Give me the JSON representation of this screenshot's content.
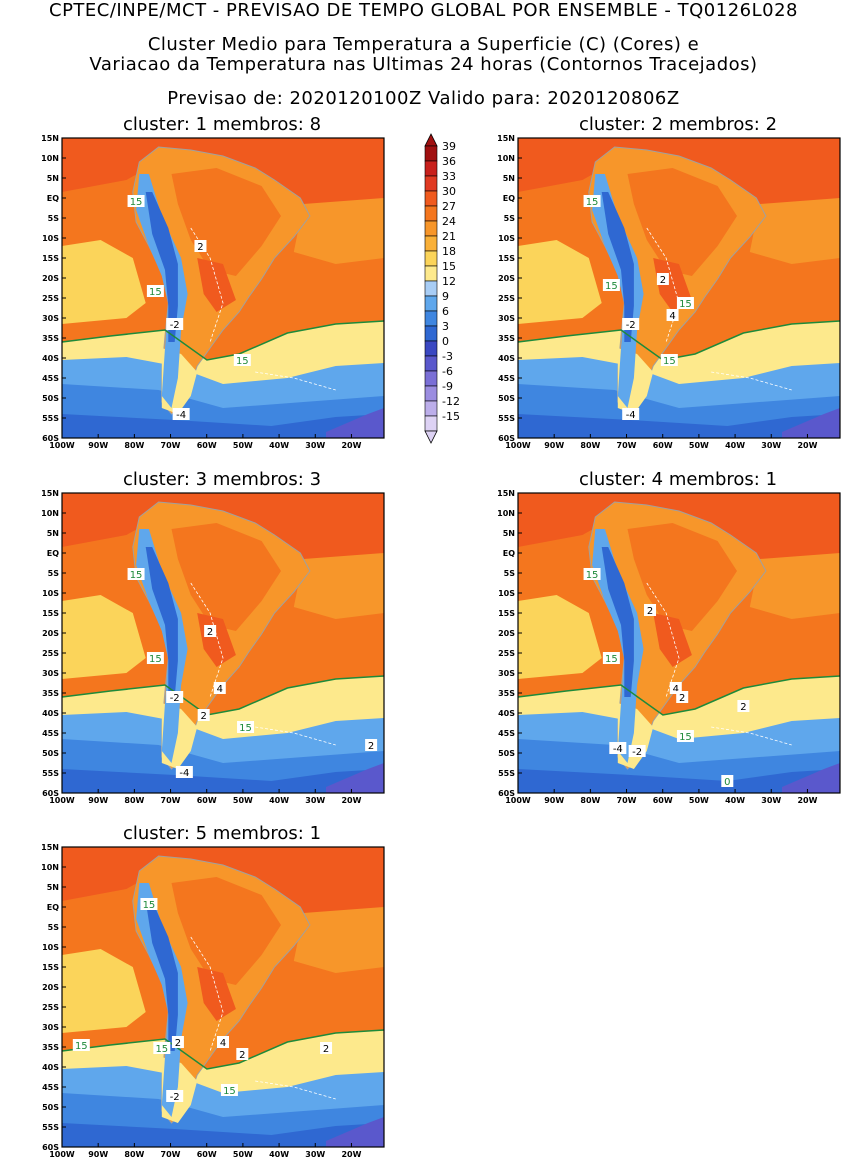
{
  "header": {
    "line1": "CPTEC/INPE/MCT - PREVISAO DE TEMPO GLOBAL POR ENSEMBLE - TQ0126L028",
    "line2": "Cluster Medio para Temperatura a Superficie (C) (Cores) e",
    "line3": "Variacao da Temperatura nas Ultimas 24 horas (Contornos Tracejados)",
    "line4": "Previsao de: 2020120100Z    Valido para: 2020120806Z"
  },
  "colors": {
    "c39": "#a01010",
    "c36": "#c8201c",
    "c33": "#e03a22",
    "c30": "#f05a1e",
    "c27": "#f4761e",
    "c24": "#f7962a",
    "c21": "#f9b038",
    "c18": "#fbd45a",
    "c15": "#fde98c",
    "c12": "#a8cdf5",
    "c9": "#5fa7ec",
    "c6": "#3f86e0",
    "c3": "#2f68d2",
    "c0": "#3a48c2",
    "cm3": "#5a58cc",
    "cm6": "#7a6fd6",
    "cm9": "#9b8de0",
    "cm12": "#bcaeea",
    "cm15": "#ddd2f4",
    "land_line": "#a0a0a0",
    "contour_15": "#1e8a3a",
    "change_line": "#ffffff"
  },
  "colorbar": {
    "ticks": [
      "39",
      "36",
      "33",
      "30",
      "27",
      "24",
      "21",
      "18",
      "15",
      "12",
      "9",
      "6",
      "3",
      "0",
      "-3",
      "-6",
      "-9",
      "-12",
      "-15"
    ]
  },
  "axes": {
    "lat_labels": [
      "15N",
      "10N",
      "5N",
      "EQ",
      "5S",
      "10S",
      "15S",
      "20S",
      "25S",
      "30S",
      "35S",
      "40S",
      "45S",
      "50S",
      "55S",
      "60S"
    ],
    "lon_labels": [
      "100W",
      "90W",
      "80W",
      "70W",
      "60W",
      "50W",
      "40W",
      "30W",
      "20W"
    ]
  },
  "panels": [
    {
      "title": "cluster: 1   membros: 8",
      "labels": [
        {
          "t": "15",
          "fx": 0.23,
          "fy": 0.21,
          "green": true
        },
        {
          "t": "2",
          "fx": 0.43,
          "fy": 0.36,
          "green": false
        },
        {
          "t": "15",
          "fx": 0.29,
          "fy": 0.51,
          "green": true
        },
        {
          "t": "-2",
          "fx": 0.35,
          "fy": 0.62,
          "green": false
        },
        {
          "t": "15",
          "fx": 0.56,
          "fy": 0.74,
          "green": true
        },
        {
          "t": "-4",
          "fx": 0.37,
          "fy": 0.92,
          "green": false
        }
      ]
    },
    {
      "title": "cluster: 2   membros: 2",
      "labels": [
        {
          "t": "15",
          "fx": 0.23,
          "fy": 0.21,
          "green": true
        },
        {
          "t": "2",
          "fx": 0.45,
          "fy": 0.47,
          "green": false
        },
        {
          "t": "15",
          "fx": 0.29,
          "fy": 0.49,
          "green": true
        },
        {
          "t": "15",
          "fx": 0.52,
          "fy": 0.55,
          "green": true
        },
        {
          "t": "4",
          "fx": 0.48,
          "fy": 0.59,
          "green": false
        },
        {
          "t": "-2",
          "fx": 0.35,
          "fy": 0.62,
          "green": false
        },
        {
          "t": "15",
          "fx": 0.47,
          "fy": 0.74,
          "green": true
        },
        {
          "t": "-4",
          "fx": 0.35,
          "fy": 0.92,
          "green": false
        }
      ]
    },
    {
      "title": "cluster: 3   membros: 3",
      "labels": [
        {
          "t": "15",
          "fx": 0.23,
          "fy": 0.27,
          "green": true
        },
        {
          "t": "2",
          "fx": 0.46,
          "fy": 0.46,
          "green": false
        },
        {
          "t": "15",
          "fx": 0.29,
          "fy": 0.55,
          "green": true
        },
        {
          "t": "4",
          "fx": 0.49,
          "fy": 0.65,
          "green": false
        },
        {
          "t": "-2",
          "fx": 0.35,
          "fy": 0.68,
          "green": false
        },
        {
          "t": "2",
          "fx": 0.44,
          "fy": 0.74,
          "green": false
        },
        {
          "t": "15",
          "fx": 0.57,
          "fy": 0.78,
          "green": true
        },
        {
          "t": "2",
          "fx": 0.96,
          "fy": 0.84,
          "green": false
        },
        {
          "t": "-4",
          "fx": 0.38,
          "fy": 0.93,
          "green": false
        }
      ]
    },
    {
      "title": "cluster: 4   membros: 1",
      "labels": [
        {
          "t": "15",
          "fx": 0.23,
          "fy": 0.27,
          "green": true
        },
        {
          "t": "2",
          "fx": 0.41,
          "fy": 0.39,
          "green": false
        },
        {
          "t": "15",
          "fx": 0.29,
          "fy": 0.55,
          "green": true
        },
        {
          "t": "4",
          "fx": 0.49,
          "fy": 0.65,
          "green": false
        },
        {
          "t": "2",
          "fx": 0.51,
          "fy": 0.68,
          "green": false
        },
        {
          "t": "2",
          "fx": 0.7,
          "fy": 0.71,
          "green": false
        },
        {
          "t": "15",
          "fx": 0.52,
          "fy": 0.81,
          "green": true
        },
        {
          "t": "-4",
          "fx": 0.31,
          "fy": 0.85,
          "green": false
        },
        {
          "t": "-2",
          "fx": 0.37,
          "fy": 0.86,
          "green": false
        },
        {
          "t": "0",
          "fx": 0.65,
          "fy": 0.96,
          "green": true
        }
      ]
    },
    {
      "title": "cluster: 5   membros: 1",
      "labels": [
        {
          "t": "15",
          "fx": 0.27,
          "fy": 0.19,
          "green": true
        },
        {
          "t": "15",
          "fx": 0.06,
          "fy": 0.66,
          "green": true
        },
        {
          "t": "15",
          "fx": 0.31,
          "fy": 0.67,
          "green": true
        },
        {
          "t": "2",
          "fx": 0.36,
          "fy": 0.65,
          "green": false
        },
        {
          "t": "4",
          "fx": 0.5,
          "fy": 0.65,
          "green": false
        },
        {
          "t": "2",
          "fx": 0.56,
          "fy": 0.69,
          "green": false
        },
        {
          "t": "2",
          "fx": 0.82,
          "fy": 0.67,
          "green": false
        },
        {
          "t": "15",
          "fx": 0.52,
          "fy": 0.81,
          "green": true
        },
        {
          "t": "-2",
          "fx": 0.35,
          "fy": 0.83,
          "green": false
        }
      ]
    }
  ]
}
